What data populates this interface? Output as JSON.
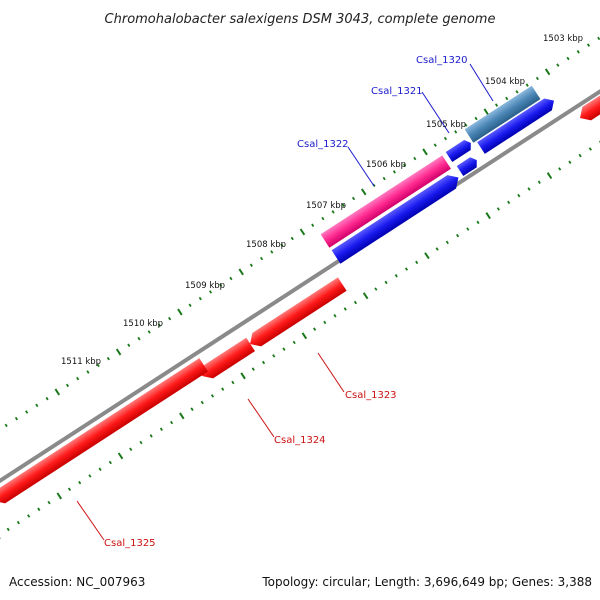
{
  "title": "Chromohalobacter salexigens DSM 3043, complete genome",
  "footer": {
    "accession": "Accession: NC_007963",
    "summary": "Topology: circular; Length: 3,696,649 bp; Genes: 3,388"
  },
  "colors": {
    "backbone": "#8a8a8a",
    "tick": "#1a7a1a",
    "forward_label": "#1a1acc",
    "reverse_label": "#cc1111",
    "gene_red": "#ff1a1a",
    "gene_blue": "#1a1aee",
    "gene_pink": "#ff2a90",
    "gene_steel": "#4a85b5"
  },
  "ticks": [
    {
      "label": "1503 kbp"
    },
    {
      "label": "1504 kbp"
    },
    {
      "label": "1505 kbp"
    },
    {
      "label": "1506 kbp"
    },
    {
      "label": "1507 kbp"
    },
    {
      "label": "1508 kbp"
    },
    {
      "label": "1509 kbp"
    },
    {
      "label": "1510 kbp"
    },
    {
      "label": "1511 kbp"
    }
  ],
  "gene_labels": [
    {
      "name": "Csal_1320"
    },
    {
      "name": "Csal_1321"
    },
    {
      "name": "Csal_1322"
    },
    {
      "name": "Csal_1323"
    },
    {
      "name": "Csal_1324"
    },
    {
      "name": "Csal_1325"
    }
  ]
}
